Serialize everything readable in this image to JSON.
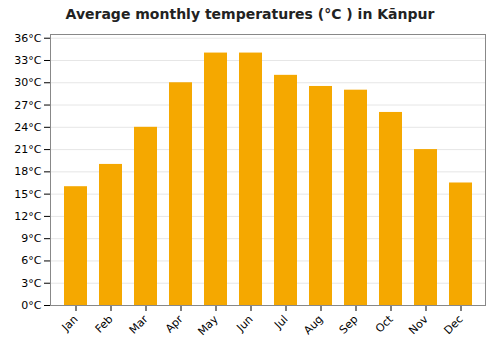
{
  "chart_data": {
    "type": "bar",
    "title": "Average monthly temperatures (°C ) in Kānpur",
    "categories": [
      "Jan",
      "Feb",
      "Mar",
      "Apr",
      "May",
      "Jun",
      "Jul",
      "Aug",
      "Sep",
      "Oct",
      "Nov",
      "Dec"
    ],
    "values": [
      16,
      19,
      24,
      30,
      34,
      34,
      31,
      29.5,
      29,
      26,
      21,
      16.5
    ],
    "color": "#F5A800",
    "ylim": [
      0,
      36.5
    ],
    "yticks": [
      {
        "value": 0,
        "label": "0°C"
      },
      {
        "value": 3,
        "label": "3°C"
      },
      {
        "value": 6,
        "label": "6°C"
      },
      {
        "value": 9,
        "label": "9°C"
      },
      {
        "value": 12,
        "label": "12°C"
      },
      {
        "value": 15,
        "label": "15°C"
      },
      {
        "value": 18,
        "label": "18°C"
      },
      {
        "value": 21,
        "label": "21°C"
      },
      {
        "value": 24,
        "label": "24°C"
      },
      {
        "value": 27,
        "label": "27°C"
      },
      {
        "value": 30,
        "label": "30°C"
      },
      {
        "value": 33,
        "label": "33°C"
      },
      {
        "value": 36,
        "label": "36°C"
      }
    ],
    "grid": true
  }
}
